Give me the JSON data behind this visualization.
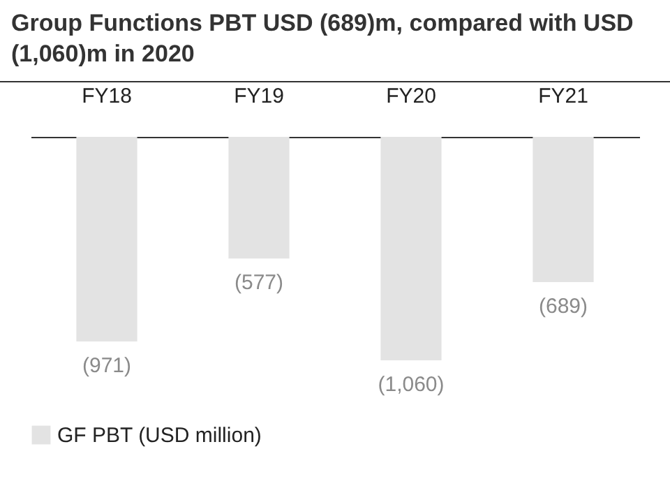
{
  "chart_data": {
    "type": "bar",
    "title": "Group Functions PBT USD (689)m, compared with USD (1,060)m in 2020",
    "categories": [
      "FY18",
      "FY19",
      "FY20",
      "FY21"
    ],
    "series": [
      {
        "name": "GF PBT (USD million)",
        "color": "#e3e3e3",
        "values": [
          -971,
          -577,
          -1060,
          -689
        ],
        "value_labels": [
          "(971)",
          "(577)",
          "(1,060)",
          "(689)"
        ]
      }
    ],
    "legend": "bottom left",
    "grid": false
  }
}
